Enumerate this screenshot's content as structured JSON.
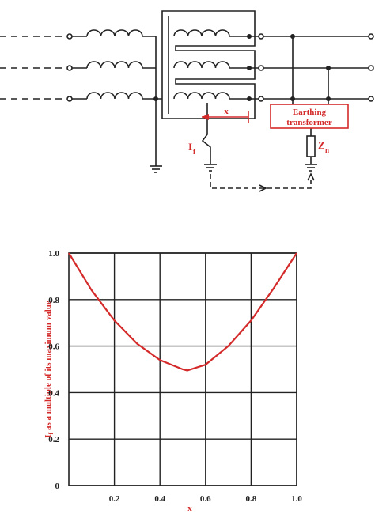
{
  "diagram": {
    "dimension_label": "x",
    "fault_current": {
      "main": "I",
      "sub": "f"
    },
    "earthing_transformer": [
      "Earthing",
      "transformer"
    ],
    "neutral_impedance": {
      "main": "Z",
      "sub": "n"
    }
  },
  "chart_data": {
    "type": "line",
    "y_label": {
      "main": "I",
      "sub": "f",
      "rest": " as a multiple of its maximum value"
    },
    "x_label": "x",
    "x": [
      0,
      0.1,
      0.2,
      0.3,
      0.4,
      0.5,
      0.52,
      0.6,
      0.7,
      0.8,
      0.9,
      1
    ],
    "series": [
      {
        "color": "#d42a2a",
        "values": [
          1,
          0.84,
          0.71,
          0.61,
          0.54,
          0.5,
          0.495,
          0.52,
          0.6,
          0.71,
          0.85,
          1
        ]
      }
    ],
    "xlim": [
      0,
      1
    ],
    "ylim": [
      0,
      1
    ],
    "xticks": [
      0.2,
      0.4,
      0.6,
      0.8,
      {
        "value": 1,
        "label": "1.0"
      }
    ],
    "yticks": [
      0,
      0.2,
      0.4,
      0.6,
      0.8,
      {
        "value": 1,
        "label": "1.0"
      }
    ],
    "grid": true
  }
}
